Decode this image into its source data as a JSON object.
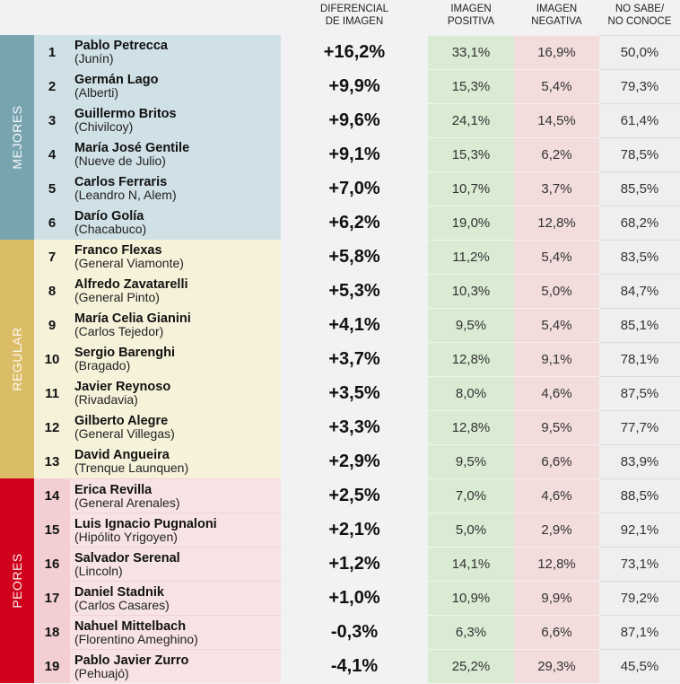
{
  "headers": {
    "differential": [
      "DIFERENCIAL",
      "DE IMAGEN"
    ],
    "positive": [
      "IMAGEN",
      "POSITIVA"
    ],
    "negative": [
      "IMAGEN",
      "NEGATIVA"
    ],
    "unknown": [
      "NO SABE/",
      "NO CONOCE"
    ]
  },
  "colors": {
    "mejores": "#78a4b0",
    "regular": "#dcbd67",
    "peores": "#d0021b",
    "positive_bg": "#d9ebd3",
    "negative_bg": "#f2dcdc"
  },
  "sections": [
    {
      "label": "MEJORES",
      "rows": [
        {
          "rank": "1",
          "name": "Pablo Petrecca",
          "district": "(Junín)",
          "diff": "+16,2%",
          "pos": "33,1%",
          "neg": "16,9%",
          "ns": "50,0%"
        },
        {
          "rank": "2",
          "name": "Germán Lago",
          "district": "(Alberti)",
          "diff": "+9,9%",
          "pos": "15,3%",
          "neg": "5,4%",
          "ns": "79,3%"
        },
        {
          "rank": "3",
          "name": "Guillermo Britos",
          "district": "(Chivilcoy)",
          "diff": "+9,6%",
          "pos": "24,1%",
          "neg": "14,5%",
          "ns": "61,4%"
        },
        {
          "rank": "4",
          "name": "María José Gentile",
          "district": "(Nueve de Julio)",
          "diff": "+9,1%",
          "pos": "15,3%",
          "neg": "6,2%",
          "ns": "78,5%"
        },
        {
          "rank": "5",
          "name": "Carlos Ferraris",
          "district": "(Leandro N, Alem)",
          "diff": "+7,0%",
          "pos": "10,7%",
          "neg": "3,7%",
          "ns": "85,5%"
        },
        {
          "rank": "6",
          "name": "Darío Golía",
          "district": "(Chacabuco)",
          "diff": "+6,2%",
          "pos": "19,0%",
          "neg": "12,8%",
          "ns": "68,2%"
        }
      ]
    },
    {
      "label": "REGULAR",
      "rows": [
        {
          "rank": "7",
          "name": "Franco Flexas",
          "district": "(General Viamonte)",
          "diff": "+5,8%",
          "pos": "11,2%",
          "neg": "5,4%",
          "ns": "83,5%"
        },
        {
          "rank": "8",
          "name": "Alfredo Zavatarelli",
          "district": "(General Pinto)",
          "diff": "+5,3%",
          "pos": "10,3%",
          "neg": "5,0%",
          "ns": "84,7%"
        },
        {
          "rank": "9",
          "name": "María Celia Gianini",
          "district": "(Carlos Tejedor)",
          "diff": "+4,1%",
          "pos": "9,5%",
          "neg": "5,4%",
          "ns": "85,1%"
        },
        {
          "rank": "10",
          "name": "Sergio Barenghi",
          "district": "(Bragado)",
          "diff": "+3,7%",
          "pos": "12,8%",
          "neg": "9,1%",
          "ns": "78,1%"
        },
        {
          "rank": "11",
          "name": "Javier Reynoso",
          "district": "(Rivadavia)",
          "diff": "+3,5%",
          "pos": "8,0%",
          "neg": "4,6%",
          "ns": "87,5%"
        },
        {
          "rank": "12",
          "name": "Gilberto Alegre",
          "district": "(General Villegas)",
          "diff": "+3,3%",
          "pos": "12,8%",
          "neg": "9,5%",
          "ns": "77,7%"
        },
        {
          "rank": "13",
          "name": "David Angueira",
          "district": "(Trenque Launquen)",
          "diff": "+2,9%",
          "pos": "9,5%",
          "neg": "6,6%",
          "ns": "83,9%"
        }
      ]
    },
    {
      "label": "PEORES",
      "rows": [
        {
          "rank": "14",
          "name": "Erica Revilla",
          "district": "(General Arenales)",
          "diff": "+2,5%",
          "pos": "7,0%",
          "neg": "4,6%",
          "ns": "88,5%"
        },
        {
          "rank": "15",
          "name": "Luis Ignacio Pugnaloni",
          "district": "(Hipólito Yrigoyen)",
          "diff": "+2,1%",
          "pos": "5,0%",
          "neg": "2,9%",
          "ns": "92,1%"
        },
        {
          "rank": "16",
          "name": "Salvador Serenal",
          "district": "(Lincoln)",
          "diff": "+1,2%",
          "pos": "14,1%",
          "neg": "12,8%",
          "ns": "73,1%"
        },
        {
          "rank": "17",
          "name": "Daniel Stadnik",
          "district": "(Carlos Casares)",
          "diff": "+1,0%",
          "pos": "10,9%",
          "neg": "9,9%",
          "ns": "79,2%"
        },
        {
          "rank": "18",
          "name": "Nahuel Mittelbach",
          "district": "(Florentino Ameghino)",
          "diff": "-0,3%",
          "pos": "6,3%",
          "neg": "6,6%",
          "ns": "87,1%"
        },
        {
          "rank": "19",
          "name": "Pablo Javier Zurro",
          "district": "(Pehuajó)",
          "diff": "-4,1%",
          "pos": "25,2%",
          "neg": "29,3%",
          "ns": "45,5%"
        }
      ]
    }
  ]
}
